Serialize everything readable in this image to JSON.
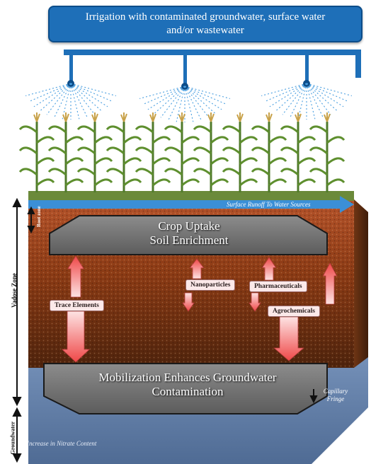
{
  "title": {
    "line1": "Irrigation with contaminated groundwater, surface water",
    "line2": "and/or wastewater"
  },
  "labels": {
    "surface_runoff": "Surface Runoff To Water Sources",
    "root_zone": "Root zone",
    "vadose_zone": "Vadose Zone",
    "groundwater": "Groundwater",
    "capillary_fringe_1": "Capillary",
    "capillary_fringe_2": "Fringe",
    "nitrate": "Increase in Nitrate Content"
  },
  "boxes": {
    "top_line1": "Crop Uptake",
    "top_line2": "Soil Enrichment",
    "bottom_line1": "Mobilization Enhances Groundwater",
    "bottom_line2": "Contamination"
  },
  "contaminants": {
    "trace_elements": "Trace Elements",
    "nanoparticles": "Nanoparticles",
    "pharmaceuticals": "Pharmaceuticals",
    "agrochemicals": "Agrochemicals"
  },
  "colors": {
    "pipe": "#1e6fb8",
    "soil_top": "#a44a1c",
    "soil_bottom": "#5a2a10",
    "groundwater": "#5f7da8",
    "arrow": "#f0585a"
  }
}
